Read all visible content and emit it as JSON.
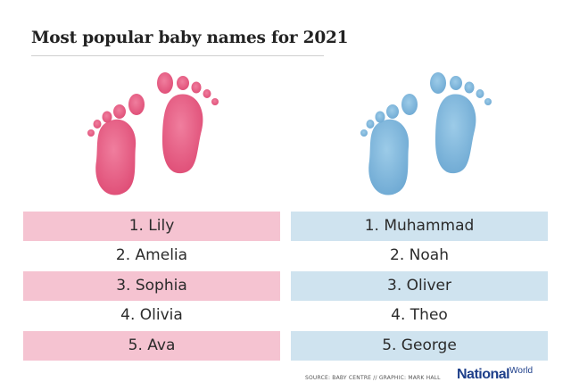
{
  "title": "Most popular baby names for 2021",
  "colors": {
    "girls_accent": "#e6587f",
    "boys_accent": "#7fb6dc"
  },
  "icons": {
    "girls": "baby-footprints-icon",
    "boys": "baby-footprints-icon"
  },
  "girls": [
    "1. Lily",
    "2. Amelia",
    "3. Sophia",
    "4. Olivia",
    "5. Ava"
  ],
  "boys": [
    "1. Muhammad",
    "2. Noah",
    "3. Oliver",
    "4. Theo",
    "5. George"
  ],
  "footer": {
    "source": "SOURCE: BABY CENTRE // GRAPHIC: MARK HALL",
    "logo_main": "National",
    "logo_sub": "World"
  }
}
